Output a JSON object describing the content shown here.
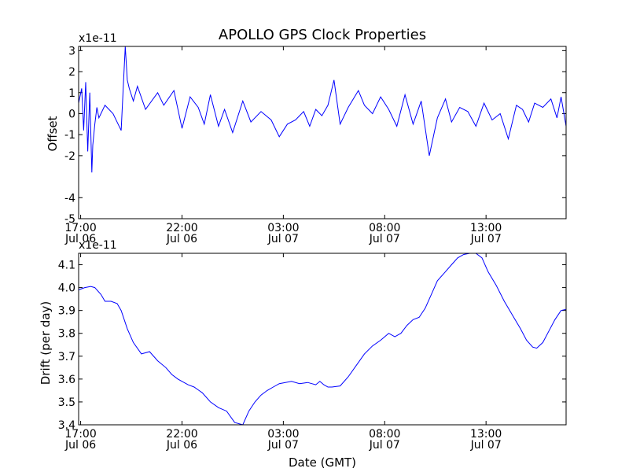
{
  "chart_data": [
    {
      "type": "line",
      "title": "APOLLO GPS Clock Properties",
      "ylabel": "Offset",
      "xlabel": "",
      "y_multiplier": "x1e-11",
      "ylim": [
        -5,
        3.2
      ],
      "yticks": [
        3,
        2,
        1,
        0,
        -1,
        -2,
        -4,
        -5
      ],
      "ytick_labels": [
        "3",
        "2",
        "1",
        "0",
        "-1",
        "-2",
        "-4",
        "-5"
      ],
      "xlim_hours": [
        16.9,
        40.95
      ],
      "xticks": [
        {
          "time": "17:00",
          "date": "Jul 06"
        },
        {
          "time": "22:00",
          "date": "Jul 06"
        },
        {
          "time": "03:00",
          "date": "Jul 07"
        },
        {
          "time": "08:00",
          "date": "Jul 07"
        },
        {
          "time": "13:00",
          "date": "Jul 07"
        }
      ],
      "line_color": "#0000ff",
      "series": [
        {
          "x_hours": [
            16.9,
            17.05,
            17.15,
            17.25,
            17.35,
            17.45,
            17.55,
            17.6,
            17.7,
            17.8,
            17.9,
            18.2,
            18.6,
            19.0,
            19.2,
            19.3,
            19.4,
            19.6,
            19.8,
            20.2,
            20.8,
            21.1,
            21.6,
            22.0,
            22.4,
            22.8,
            23.1,
            23.4,
            23.8,
            24.1,
            24.5,
            25.0,
            25.4,
            25.9,
            26.4,
            26.8,
            27.2,
            27.6,
            28.0,
            28.3,
            28.6,
            28.9,
            29.2,
            29.5,
            29.8,
            30.2,
            30.7,
            31.0,
            31.4,
            31.8,
            32.2,
            32.6,
            33.0,
            33.4,
            33.8,
            34.2,
            34.6,
            35.0,
            35.3,
            35.7,
            36.1,
            36.5,
            36.9,
            37.3,
            37.7,
            38.1,
            38.5,
            38.8,
            39.1,
            39.4,
            39.8,
            40.2,
            40.5,
            40.7,
            40.95
          ],
          "y": [
            0.5,
            1.2,
            -0.8,
            1.5,
            -1.8,
            1.0,
            -2.8,
            -1.5,
            -0.5,
            0.3,
            -0.2,
            0.4,
            0.0,
            -0.8,
            3.2,
            1.6,
            1.2,
            0.6,
            1.3,
            0.2,
            1.0,
            0.4,
            1.1,
            -0.7,
            0.8,
            0.3,
            -0.5,
            0.9,
            -0.6,
            0.2,
            -0.9,
            0.6,
            -0.4,
            0.1,
            -0.3,
            -1.1,
            -0.5,
            -0.3,
            0.1,
            -0.6,
            0.2,
            -0.1,
            0.4,
            1.6,
            -0.5,
            0.3,
            1.1,
            0.4,
            0.0,
            0.8,
            0.2,
            -0.6,
            0.9,
            -0.5,
            0.6,
            -2.0,
            -0.2,
            0.7,
            -0.4,
            0.3,
            0.1,
            -0.6,
            0.5,
            -0.3,
            0.0,
            -1.2,
            0.4,
            0.2,
            -0.4,
            0.5,
            0.3,
            0.7,
            -0.2,
            0.8,
            -0.6
          ]
        }
      ]
    },
    {
      "type": "line",
      "title": "",
      "ylabel": "Drift (per day)",
      "xlabel": "Date (GMT)",
      "y_multiplier": "x1e-11",
      "ylim": [
        3.4,
        4.15
      ],
      "yticks": [
        4.1,
        4.0,
        3.9,
        3.8,
        3.7,
        3.6,
        3.5,
        3.4
      ],
      "ytick_labels": [
        "4.1",
        "4.0",
        "3.9",
        "3.8",
        "3.7",
        "3.6",
        "3.5",
        "3.4"
      ],
      "xlim_hours": [
        16.9,
        40.95
      ],
      "xticks": [
        {
          "time": "17:00",
          "date": "Jul 06"
        },
        {
          "time": "22:00",
          "date": "Jul 06"
        },
        {
          "time": "03:00",
          "date": "Jul 07"
        },
        {
          "time": "08:00",
          "date": "Jul 07"
        },
        {
          "time": "13:00",
          "date": "Jul 07"
        }
      ],
      "line_color": "#0000ff",
      "series": [
        {
          "x_hours": [
            16.9,
            17.2,
            17.5,
            17.7,
            18.0,
            18.2,
            18.5,
            18.8,
            19.0,
            19.3,
            19.6,
            20.0,
            20.4,
            20.8,
            21.2,
            21.5,
            21.8,
            22.0,
            22.3,
            22.6,
            23.0,
            23.4,
            23.8,
            24.2,
            24.6,
            25.0,
            25.3,
            25.6,
            25.9,
            26.2,
            26.5,
            26.8,
            27.1,
            27.4,
            27.8,
            28.2,
            28.6,
            28.8,
            29.0,
            29.2,
            29.4,
            29.8,
            30.2,
            30.6,
            31.0,
            31.4,
            31.8,
            32.2,
            32.5,
            32.8,
            33.1,
            33.4,
            33.7,
            34.0,
            34.3,
            34.6,
            35.0,
            35.3,
            35.6,
            35.9,
            36.2,
            36.5,
            36.8,
            37.1,
            37.5,
            37.9,
            38.3,
            38.7,
            39.0,
            39.3,
            39.5,
            39.8,
            40.1,
            40.4,
            40.7,
            40.95
          ],
          "y": [
            3.99,
            4.0,
            4.005,
            4.0,
            3.97,
            3.94,
            3.94,
            3.93,
            3.9,
            3.82,
            3.76,
            3.71,
            3.72,
            3.68,
            3.65,
            3.62,
            3.6,
            3.59,
            3.575,
            3.565,
            3.54,
            3.5,
            3.475,
            3.46,
            3.41,
            3.4,
            3.46,
            3.5,
            3.53,
            3.55,
            3.565,
            3.58,
            3.585,
            3.59,
            3.58,
            3.585,
            3.575,
            3.59,
            3.575,
            3.565,
            3.565,
            3.57,
            3.61,
            3.66,
            3.71,
            3.745,
            3.77,
            3.8,
            3.785,
            3.8,
            3.835,
            3.86,
            3.87,
            3.91,
            3.97,
            4.03,
            4.07,
            4.1,
            4.13,
            4.145,
            4.15,
            4.15,
            4.13,
            4.07,
            4.01,
            3.94,
            3.88,
            3.82,
            3.77,
            3.74,
            3.735,
            3.76,
            3.81,
            3.86,
            3.9,
            3.905
          ]
        }
      ]
    }
  ]
}
